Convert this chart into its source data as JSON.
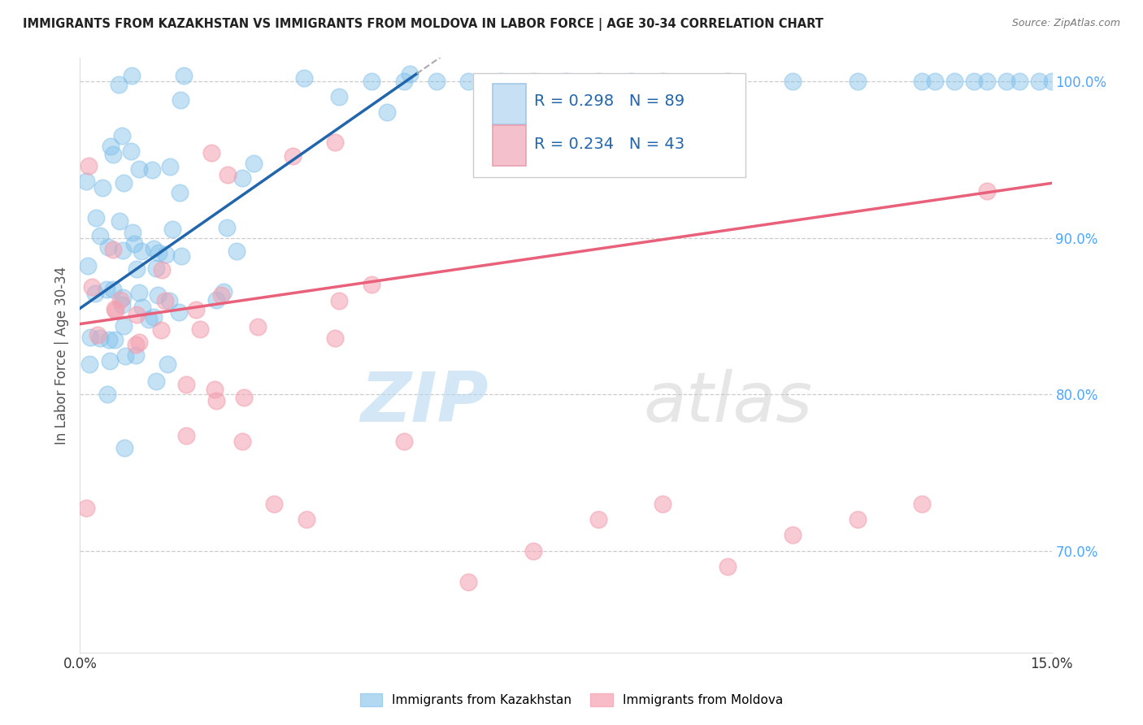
{
  "title": "IMMIGRANTS FROM KAZAKHSTAN VS IMMIGRANTS FROM MOLDOVA IN LABOR FORCE | AGE 30-34 CORRELATION CHART",
  "source": "Source: ZipAtlas.com",
  "ylabel": "In Labor Force | Age 30-34",
  "watermark_zip": "ZIP",
  "watermark_atlas": "atlas",
  "xlim": [
    0.0,
    0.15
  ],
  "ylim": [
    0.635,
    1.015
  ],
  "xticks": [
    0.0,
    0.15
  ],
  "xtick_labels": [
    "0.0%",
    "15.0%"
  ],
  "ytick_labels": [
    "70.0%",
    "80.0%",
    "90.0%",
    "100.0%"
  ],
  "yticks": [
    0.7,
    0.8,
    0.9,
    1.0
  ],
  "color_kaz": "#7fbfea",
  "color_mol": "#f4a0b0",
  "color_line_kaz": "#2166ac",
  "color_line_mol": "#e8607a",
  "background_color": "#ffffff",
  "grid_color": "#cccccc",
  "kaz_line_x0": 0.0,
  "kaz_line_y0": 0.855,
  "kaz_line_x1": 0.052,
  "kaz_line_y1": 1.005,
  "mol_line_x0": 0.0,
  "mol_line_y0": 0.845,
  "mol_line_x1": 0.15,
  "mol_line_y1": 0.935
}
